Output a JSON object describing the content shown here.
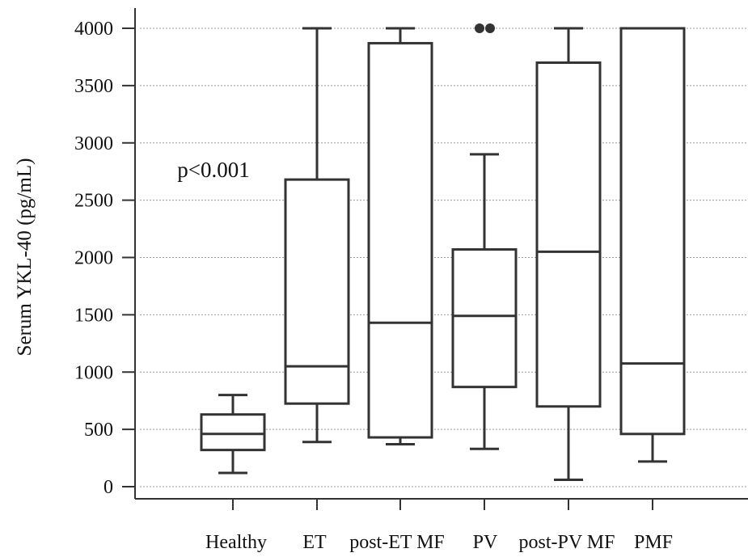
{
  "chart_data": {
    "type": "box",
    "title": "",
    "xlabel": "",
    "ylabel": "Serum YKL-40 (pg/mL)",
    "ylim": [
      0,
      4000
    ],
    "yticks": [
      0,
      500,
      1000,
      1500,
      2000,
      2500,
      3000,
      3500,
      4000
    ],
    "grid": "horizontal-dotted",
    "annotation": "p<0.001",
    "categories": [
      "Healthy",
      "ET",
      "post-ET MF",
      "PV",
      "post-PV MF",
      "PMF"
    ],
    "boxes": [
      {
        "category": "Healthy",
        "whisker_low": 120,
        "q1": 320,
        "median": 460,
        "q3": 630,
        "whisker_high": 800,
        "outliers": []
      },
      {
        "category": "ET",
        "whisker_low": 390,
        "q1": 725,
        "median": 1050,
        "q3": 2680,
        "whisker_high": 4000,
        "outliers": []
      },
      {
        "category": "post-ET MF",
        "whisker_low": 370,
        "q1": 430,
        "median": 1430,
        "q3": 3870,
        "whisker_high": 4000,
        "outliers": []
      },
      {
        "category": "PV",
        "whisker_low": 330,
        "q1": 870,
        "median": 1490,
        "q3": 2070,
        "whisker_high": 2900,
        "outliers": [
          4000,
          4000
        ]
      },
      {
        "category": "post-PV MF",
        "whisker_low": 60,
        "q1": 700,
        "median": 2050,
        "q3": 3700,
        "whisker_high": 4000,
        "outliers": []
      },
      {
        "category": "PMF",
        "whisker_low": 220,
        "q1": 460,
        "median": 1075,
        "q3": 4000,
        "whisker_high": 4000,
        "outliers": []
      }
    ]
  }
}
